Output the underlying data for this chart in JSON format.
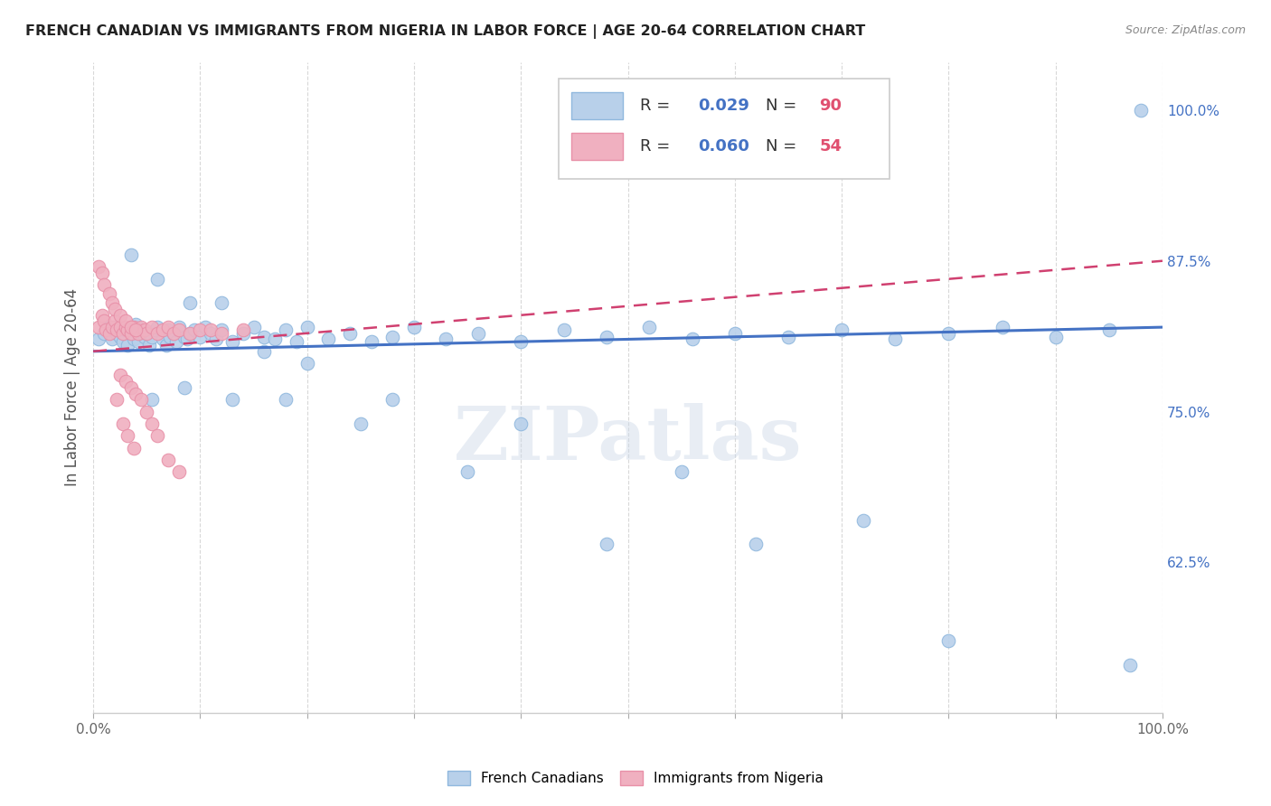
{
  "title": "FRENCH CANADIAN VS IMMIGRANTS FROM NIGERIA IN LABOR FORCE | AGE 20-64 CORRELATION CHART",
  "source": "Source: ZipAtlas.com",
  "ylabel": "In Labor Force | Age 20-64",
  "ylabel_right_ticks": [
    "62.5%",
    "75.0%",
    "87.5%",
    "100.0%"
  ],
  "ylabel_right_values": [
    0.625,
    0.75,
    0.875,
    1.0
  ],
  "blue_color": "#b8d0ea",
  "pink_color": "#f0b0c0",
  "blue_edge_color": "#90b8de",
  "pink_edge_color": "#e890a8",
  "blue_line_color": "#4472c4",
  "pink_line_color": "#d04070",
  "watermark": "ZIPatlas",
  "blue_scatter_x": [
    0.005,
    0.01,
    0.015,
    0.018,
    0.02,
    0.022,
    0.025,
    0.028,
    0.03,
    0.032,
    0.035,
    0.038,
    0.04,
    0.042,
    0.045,
    0.048,
    0.05,
    0.052,
    0.055,
    0.058,
    0.06,
    0.065,
    0.068,
    0.07,
    0.072,
    0.075,
    0.078,
    0.08,
    0.085,
    0.088,
    0.09,
    0.095,
    0.1,
    0.105,
    0.11,
    0.115,
    0.12,
    0.13,
    0.14,
    0.15,
    0.16,
    0.17,
    0.18,
    0.19,
    0.2,
    0.22,
    0.24,
    0.26,
    0.28,
    0.3,
    0.33,
    0.36,
    0.4,
    0.44,
    0.48,
    0.52,
    0.56,
    0.6,
    0.65,
    0.7,
    0.75,
    0.8,
    0.85,
    0.9,
    0.95,
    0.98,
    0.035,
    0.06,
    0.09,
    0.12,
    0.16,
    0.2,
    0.28,
    0.4,
    0.55,
    0.72,
    0.055,
    0.085,
    0.13,
    0.18,
    0.25,
    0.35,
    0.48,
    0.62,
    0.8,
    0.97
  ],
  "blue_scatter_y": [
    0.81,
    0.815,
    0.82,
    0.81,
    0.82,
    0.815,
    0.812,
    0.808,
    0.818,
    0.805,
    0.815,
    0.81,
    0.822,
    0.808,
    0.818,
    0.812,
    0.815,
    0.805,
    0.812,
    0.818,
    0.82,
    0.81,
    0.805,
    0.818,
    0.812,
    0.815,
    0.808,
    0.82,
    0.812,
    0.81,
    0.815,
    0.818,
    0.812,
    0.82,
    0.815,
    0.81,
    0.818,
    0.808,
    0.815,
    0.82,
    0.812,
    0.81,
    0.818,
    0.808,
    0.82,
    0.81,
    0.815,
    0.808,
    0.812,
    0.82,
    0.81,
    0.815,
    0.808,
    0.818,
    0.812,
    0.82,
    0.81,
    0.815,
    0.812,
    0.818,
    0.81,
    0.815,
    0.82,
    0.812,
    0.818,
    1.0,
    0.88,
    0.86,
    0.84,
    0.84,
    0.8,
    0.79,
    0.76,
    0.74,
    0.7,
    0.66,
    0.76,
    0.77,
    0.76,
    0.76,
    0.74,
    0.7,
    0.64,
    0.64,
    0.56,
    0.54
  ],
  "pink_scatter_x": [
    0.005,
    0.008,
    0.01,
    0.012,
    0.015,
    0.018,
    0.02,
    0.022,
    0.025,
    0.028,
    0.03,
    0.032,
    0.035,
    0.038,
    0.04,
    0.042,
    0.045,
    0.048,
    0.05,
    0.055,
    0.06,
    0.065,
    0.07,
    0.075,
    0.08,
    0.09,
    0.1,
    0.11,
    0.12,
    0.14,
    0.005,
    0.008,
    0.01,
    0.015,
    0.018,
    0.02,
    0.025,
    0.03,
    0.035,
    0.04,
    0.025,
    0.03,
    0.035,
    0.04,
    0.045,
    0.05,
    0.055,
    0.06,
    0.07,
    0.08,
    0.022,
    0.028,
    0.032,
    0.038
  ],
  "pink_scatter_y": [
    0.82,
    0.83,
    0.825,
    0.818,
    0.815,
    0.82,
    0.825,
    0.818,
    0.82,
    0.815,
    0.82,
    0.818,
    0.815,
    0.82,
    0.818,
    0.815,
    0.82,
    0.818,
    0.815,
    0.82,
    0.815,
    0.818,
    0.82,
    0.815,
    0.818,
    0.815,
    0.818,
    0.818,
    0.815,
    0.818,
    0.87,
    0.865,
    0.855,
    0.848,
    0.84,
    0.835,
    0.83,
    0.825,
    0.82,
    0.818,
    0.78,
    0.775,
    0.77,
    0.765,
    0.76,
    0.75,
    0.74,
    0.73,
    0.71,
    0.7,
    0.76,
    0.74,
    0.73,
    0.72
  ],
  "xlim": [
    0.0,
    1.0
  ],
  "ylim": [
    0.5,
    1.04
  ],
  "grid_color": "#d8d8d8",
  "background_color": "#ffffff",
  "blue_trend_x": [
    0.0,
    1.0
  ],
  "blue_trend_y": [
    0.8,
    0.82
  ],
  "pink_trend_x": [
    0.0,
    1.0
  ],
  "pink_trend_y": [
    0.8,
    0.875
  ],
  "xticks": [
    0.0,
    0.1,
    0.2,
    0.3,
    0.4,
    0.5,
    0.6,
    0.7,
    0.8,
    0.9,
    1.0
  ]
}
